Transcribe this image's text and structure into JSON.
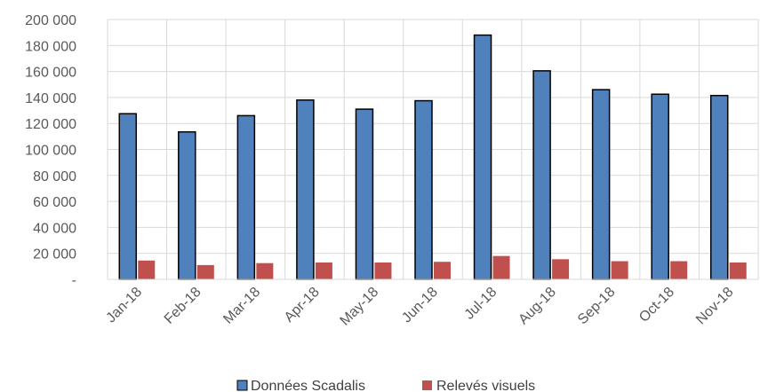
{
  "chart_data": {
    "type": "bar",
    "title": "",
    "xlabel": "",
    "ylabel": "",
    "categories": [
      "Jan-18",
      "Feb-18",
      "Mar-18",
      "Apr-18",
      "May-18",
      "Jun-18",
      "Jul-18",
      "Aug-18",
      "Sep-18",
      "Oct-18",
      "Nov-18"
    ],
    "series": [
      {
        "name": "Données Scadalis",
        "color": "#4F81BD",
        "values": [
          127500,
          113500,
          126000,
          138000,
          131000,
          137500,
          188000,
          160500,
          146000,
          142500,
          141500
        ]
      },
      {
        "name": "Relevés visuels",
        "color": "#C0504D",
        "values": [
          14500,
          11000,
          12500,
          13000,
          13000,
          13500,
          18000,
          15500,
          14000,
          14000,
          13000
        ]
      }
    ],
    "ylim": [
      0,
      200000
    ],
    "yticks": [
      0,
      20000,
      40000,
      60000,
      80000,
      100000,
      120000,
      140000,
      160000,
      180000,
      200000
    ],
    "ytick_labels": [
      "-",
      "20 000",
      "40 000",
      "60 000",
      "80 000",
      "100 000",
      "120 000",
      "140 000",
      "160 000",
      "180 000",
      "200 000"
    ],
    "grid": true,
    "legend_position": "bottom"
  }
}
